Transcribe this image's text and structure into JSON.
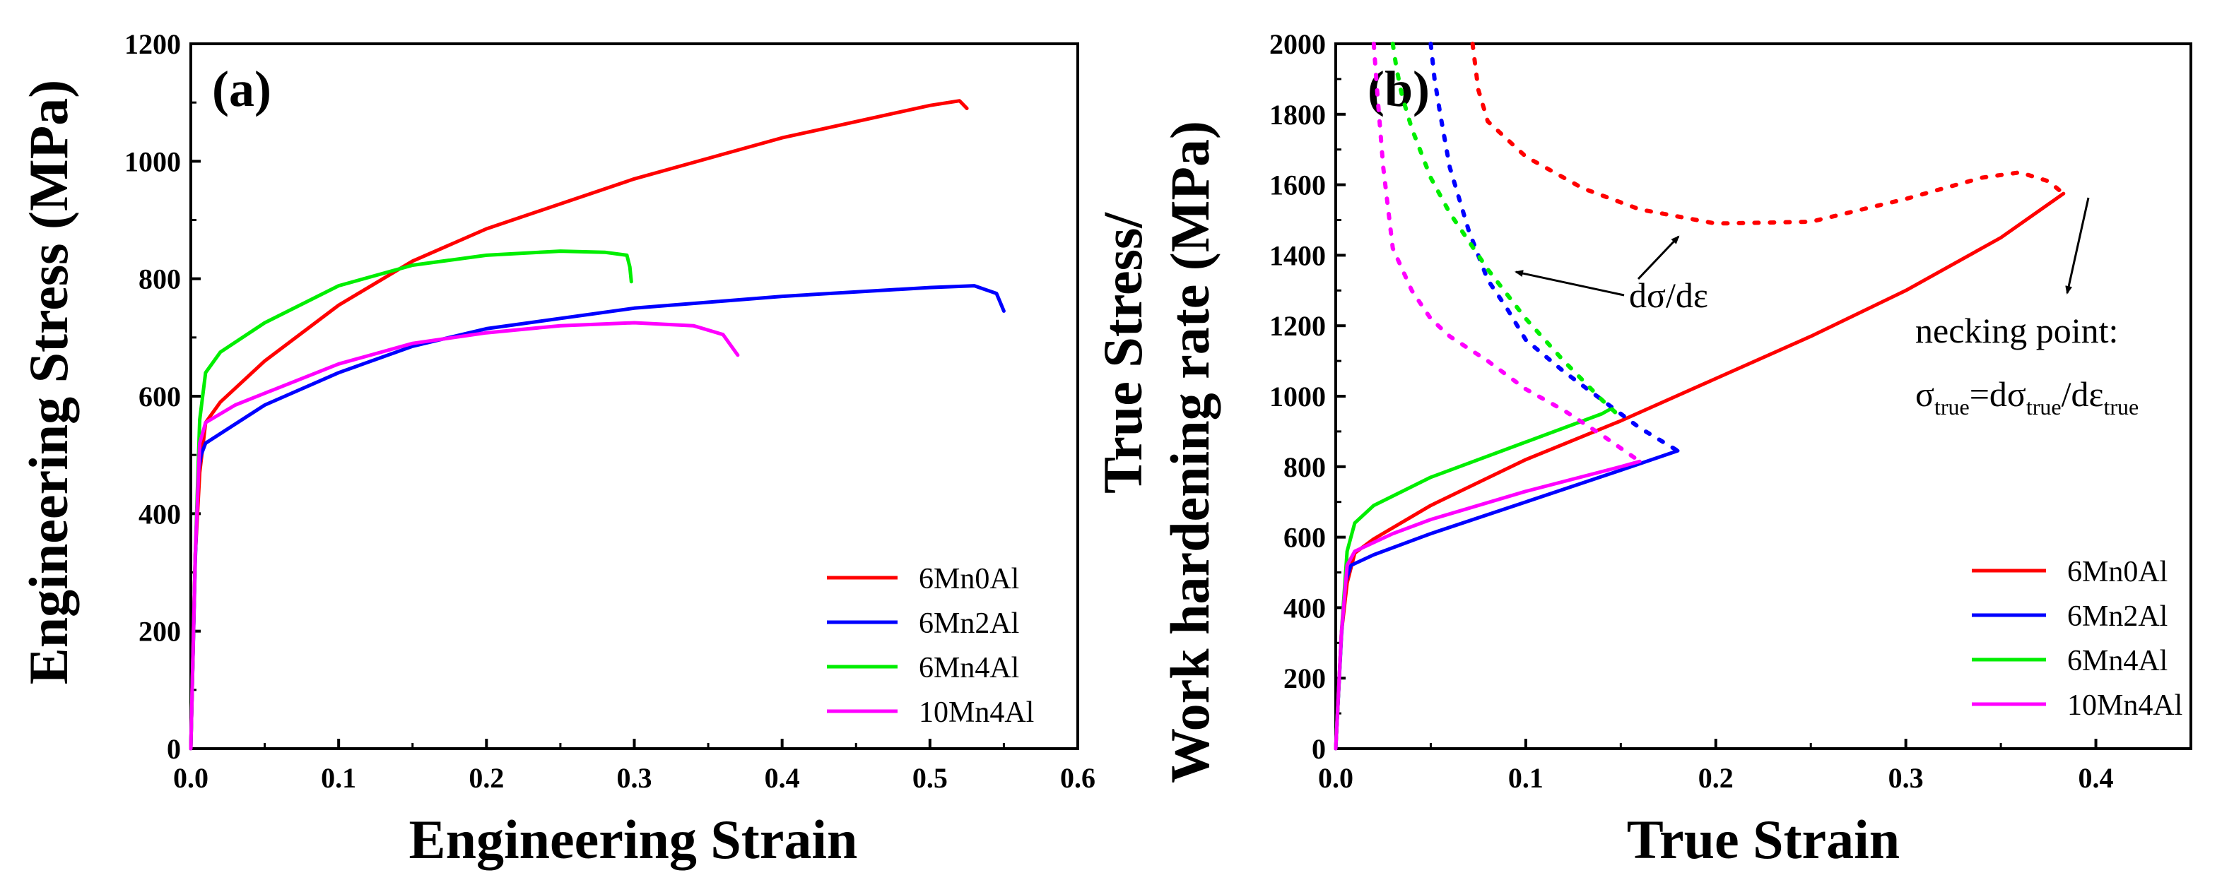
{
  "chart_data": [
    {
      "panel": "(a)",
      "type": "line",
      "xlabel": "Engineering Strain",
      "ylabel": "Engineering Stress (MPa)",
      "xlim": [
        0,
        0.6
      ],
      "ylim": [
        0,
        1200
      ],
      "xticks": [
        0.0,
        0.1,
        0.2,
        0.3,
        0.4,
        0.5,
        0.6
      ],
      "yticks": [
        0,
        200,
        400,
        600,
        800,
        1000,
        1200
      ],
      "xtick_labels": [
        "0.0",
        "0.1",
        "0.2",
        "0.3",
        "0.4",
        "0.5",
        "0.6"
      ],
      "ytick_labels": [
        "0",
        "200",
        "400",
        "600",
        "800",
        "1000",
        "1200"
      ],
      "legend_position": "bottom-right",
      "series": [
        {
          "name": "6Mn0Al",
          "color": "#ff0000",
          "style": "solid",
          "x": [
            0,
            0.003,
            0.006,
            0.01,
            0.02,
            0.05,
            0.1,
            0.15,
            0.2,
            0.3,
            0.4,
            0.5,
            0.52,
            0.525
          ],
          "y": [
            0,
            330,
            470,
            555,
            590,
            660,
            755,
            830,
            885,
            970,
            1040,
            1095,
            1103,
            1090
          ]
        },
        {
          "name": "6Mn2Al",
          "color": "#0000ff",
          "style": "solid",
          "x": [
            0,
            0.003,
            0.005,
            0.007,
            0.01,
            0.05,
            0.1,
            0.15,
            0.2,
            0.3,
            0.4,
            0.5,
            0.53,
            0.545,
            0.55
          ],
          "y": [
            0,
            320,
            470,
            500,
            520,
            585,
            640,
            685,
            715,
            750,
            770,
            785,
            788,
            775,
            745
          ]
        },
        {
          "name": "6Mn4Al",
          "color": "#00ee00",
          "style": "solid",
          "x": [
            0,
            0.003,
            0.006,
            0.01,
            0.02,
            0.05,
            0.1,
            0.15,
            0.2,
            0.25,
            0.28,
            0.295,
            0.297,
            0.298
          ],
          "y": [
            0,
            330,
            560,
            640,
            675,
            725,
            788,
            823,
            840,
            847,
            845,
            840,
            820,
            795
          ]
        },
        {
          "name": "10Mn4Al",
          "color": "#ff00ff",
          "style": "solid",
          "x": [
            0,
            0.003,
            0.006,
            0.01,
            0.03,
            0.05,
            0.1,
            0.15,
            0.2,
            0.25,
            0.3,
            0.34,
            0.36,
            0.37
          ],
          "y": [
            0,
            330,
            520,
            555,
            585,
            605,
            655,
            690,
            708,
            720,
            725,
            720,
            705,
            670
          ]
        }
      ]
    },
    {
      "panel": "(b)",
      "type": "line",
      "xlabel": "True Strain",
      "ylabel_line1": "True Stress/",
      "ylabel_line2": "Work hardening rate (MPa)",
      "xlim": [
        0,
        0.45
      ],
      "ylim": [
        0,
        2000
      ],
      "xticks": [
        0.0,
        0.1,
        0.2,
        0.3,
        0.4
      ],
      "yticks": [
        0,
        200,
        400,
        600,
        800,
        1000,
        1200,
        1400,
        1600,
        1800,
        2000
      ],
      "xtick_labels": [
        "0.0",
        "0.1",
        "0.2",
        "0.3",
        "0.4"
      ],
      "ytick_labels": [
        "0",
        "200",
        "400",
        "600",
        "800",
        "1000",
        "1200",
        "1400",
        "1600",
        "1800",
        "2000"
      ],
      "legend_position": "bottom-right",
      "annotations": {
        "work_hardening": "dσ/dε",
        "necking_line1": "necking point:",
        "necking_sigma": "σ",
        "necking_sub1": "true",
        "necking_eq": "=dσ",
        "necking_sub2": "true",
        "necking_slash": "/dε",
        "necking_sub3": "true"
      },
      "series": [
        {
          "name": "6Mn0Al",
          "color": "#ff0000",
          "style": "solid",
          "x": [
            0,
            0.003,
            0.006,
            0.01,
            0.02,
            0.05,
            0.1,
            0.15,
            0.2,
            0.25,
            0.3,
            0.35,
            0.383
          ],
          "y": [
            0,
            330,
            470,
            555,
            595,
            690,
            820,
            930,
            1050,
            1170,
            1300,
            1450,
            1575
          ]
        },
        {
          "name": "6Mn2Al",
          "color": "#0000ff",
          "style": "solid",
          "x": [
            0,
            0.003,
            0.005,
            0.008,
            0.02,
            0.05,
            0.1,
            0.15,
            0.18
          ],
          "y": [
            0,
            320,
            470,
            520,
            550,
            610,
            700,
            790,
            845
          ]
        },
        {
          "name": "6Mn4Al",
          "color": "#00ee00",
          "style": "solid",
          "x": [
            0,
            0.003,
            0.006,
            0.01,
            0.02,
            0.05,
            0.1,
            0.14,
            0.145,
            0.147
          ],
          "y": [
            0,
            330,
            560,
            640,
            690,
            770,
            870,
            950,
            965,
            955
          ]
        },
        {
          "name": "10Mn4Al",
          "color": "#ff00ff",
          "style": "solid",
          "x": [
            0,
            0.003,
            0.006,
            0.01,
            0.03,
            0.05,
            0.1,
            0.15,
            0.16
          ],
          "y": [
            0,
            330,
            520,
            560,
            610,
            650,
            730,
            800,
            815
          ]
        },
        {
          "name": "6Mn0Al dσ/dε",
          "color": "#ff0000",
          "style": "dotted",
          "x": [
            0.072,
            0.075,
            0.08,
            0.1,
            0.13,
            0.16,
            0.2,
            0.25,
            0.3,
            0.34,
            0.36,
            0.375,
            0.383
          ],
          "y": [
            2000,
            1870,
            1780,
            1680,
            1590,
            1530,
            1490,
            1495,
            1560,
            1620,
            1635,
            1610,
            1575
          ]
        },
        {
          "name": "6Mn2Al dσ/dε",
          "color": "#0000ff",
          "style": "dotted",
          "x": [
            0.05,
            0.052,
            0.055,
            0.06,
            0.07,
            0.08,
            0.09,
            0.1,
            0.12,
            0.14,
            0.16,
            0.18
          ],
          "y": [
            2000,
            1900,
            1800,
            1650,
            1470,
            1330,
            1250,
            1160,
            1070,
            990,
            910,
            845
          ]
        },
        {
          "name": "6Mn4Al dσ/dε",
          "color": "#00ee00",
          "style": "dotted",
          "x": [
            0.03,
            0.032,
            0.035,
            0.04,
            0.05,
            0.06,
            0.08,
            0.1,
            0.12,
            0.14,
            0.147
          ],
          "y": [
            2000,
            1930,
            1850,
            1760,
            1620,
            1520,
            1360,
            1220,
            1100,
            990,
            955
          ]
        },
        {
          "name": "10Mn4Al dσ/dε",
          "color": "#ff00ff",
          "style": "dotted",
          "x": [
            0.02,
            0.022,
            0.025,
            0.03,
            0.04,
            0.05,
            0.06,
            0.08,
            0.1,
            0.12,
            0.14,
            0.16
          ],
          "y": [
            2000,
            1850,
            1650,
            1420,
            1300,
            1220,
            1170,
            1100,
            1020,
            960,
            890,
            815
          ]
        }
      ]
    }
  ]
}
